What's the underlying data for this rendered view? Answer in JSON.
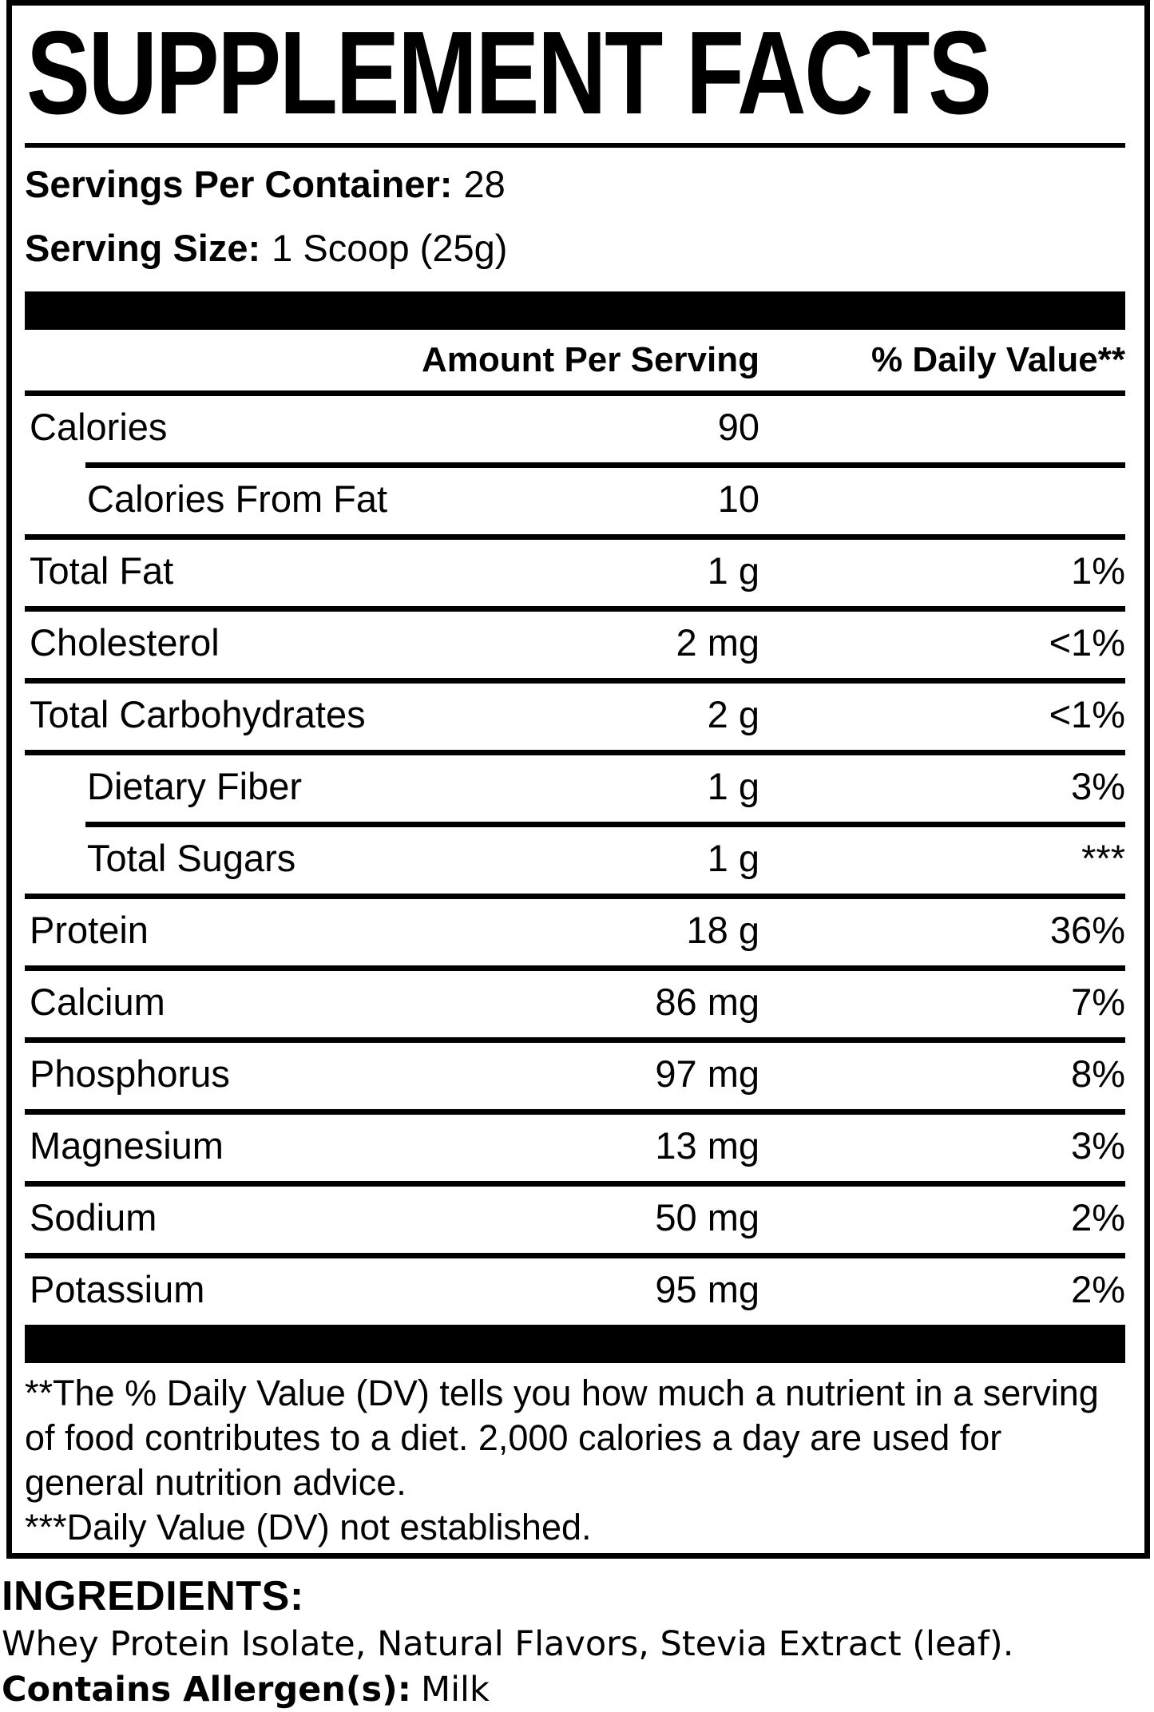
{
  "label": {
    "title": "SUPPLEMENT FACTS",
    "servings_per_container": {
      "label": "Servings Per Container:",
      "value": "28"
    },
    "serving_size": {
      "label": "Serving Size:",
      "value": "1 Scoop (25g)"
    },
    "columns": {
      "amount": "Amount Per Serving",
      "dv": "% Daily Value**"
    },
    "rows": [
      {
        "name": "Calories",
        "amount": "90",
        "dv": "",
        "indent": false,
        "rule_indent": false
      },
      {
        "name": "Calories From Fat",
        "amount": "10",
        "dv": "",
        "indent": true,
        "rule_indent": true
      },
      {
        "name": "Total Fat",
        "amount": "1 g",
        "dv": "1%",
        "indent": false,
        "rule_indent": false
      },
      {
        "name": "Cholesterol",
        "amount": "2 mg",
        "dv": "<1%",
        "indent": false,
        "rule_indent": false
      },
      {
        "name": "Total Carbohydrates",
        "amount": "2 g",
        "dv": "<1%",
        "indent": false,
        "rule_indent": false
      },
      {
        "name": "Dietary Fiber",
        "amount": "1 g",
        "dv": "3%",
        "indent": true,
        "rule_indent": false
      },
      {
        "name": "Total Sugars",
        "amount": "1 g",
        "dv": "***",
        "indent": true,
        "rule_indent": true
      },
      {
        "name": "Protein",
        "amount": "18 g",
        "dv": "36%",
        "indent": false,
        "rule_indent": false
      },
      {
        "name": "Calcium",
        "amount": "86 mg",
        "dv": "7%",
        "indent": false,
        "rule_indent": false
      },
      {
        "name": "Phosphorus",
        "amount": "97 mg",
        "dv": "8%",
        "indent": false,
        "rule_indent": false
      },
      {
        "name": "Magnesium",
        "amount": "13 mg",
        "dv": "3%",
        "indent": false,
        "rule_indent": false
      },
      {
        "name": "Sodium",
        "amount": "50 mg",
        "dv": "2%",
        "indent": false,
        "rule_indent": false
      },
      {
        "name": "Potassium",
        "amount": "95 mg",
        "dv": "2%",
        "indent": false,
        "rule_indent": false
      }
    ],
    "footnotes": [
      "**The % Daily Value (DV) tells you how much a nutrient in a serving of food contributes to a diet. 2,000 calories a day are used for general nutrition advice.",
      "***Daily Value (DV) not established."
    ]
  },
  "ingredients": {
    "heading": "INGREDIENTS:",
    "list": "Whey Protein Isolate, Natural Flavors, Stevia Extract (leaf).",
    "allergen_label": "Contains Allergen(s):",
    "allergen_value": "Milk"
  },
  "colors": {
    "ink": "#000000",
    "background": "#ffffff"
  }
}
